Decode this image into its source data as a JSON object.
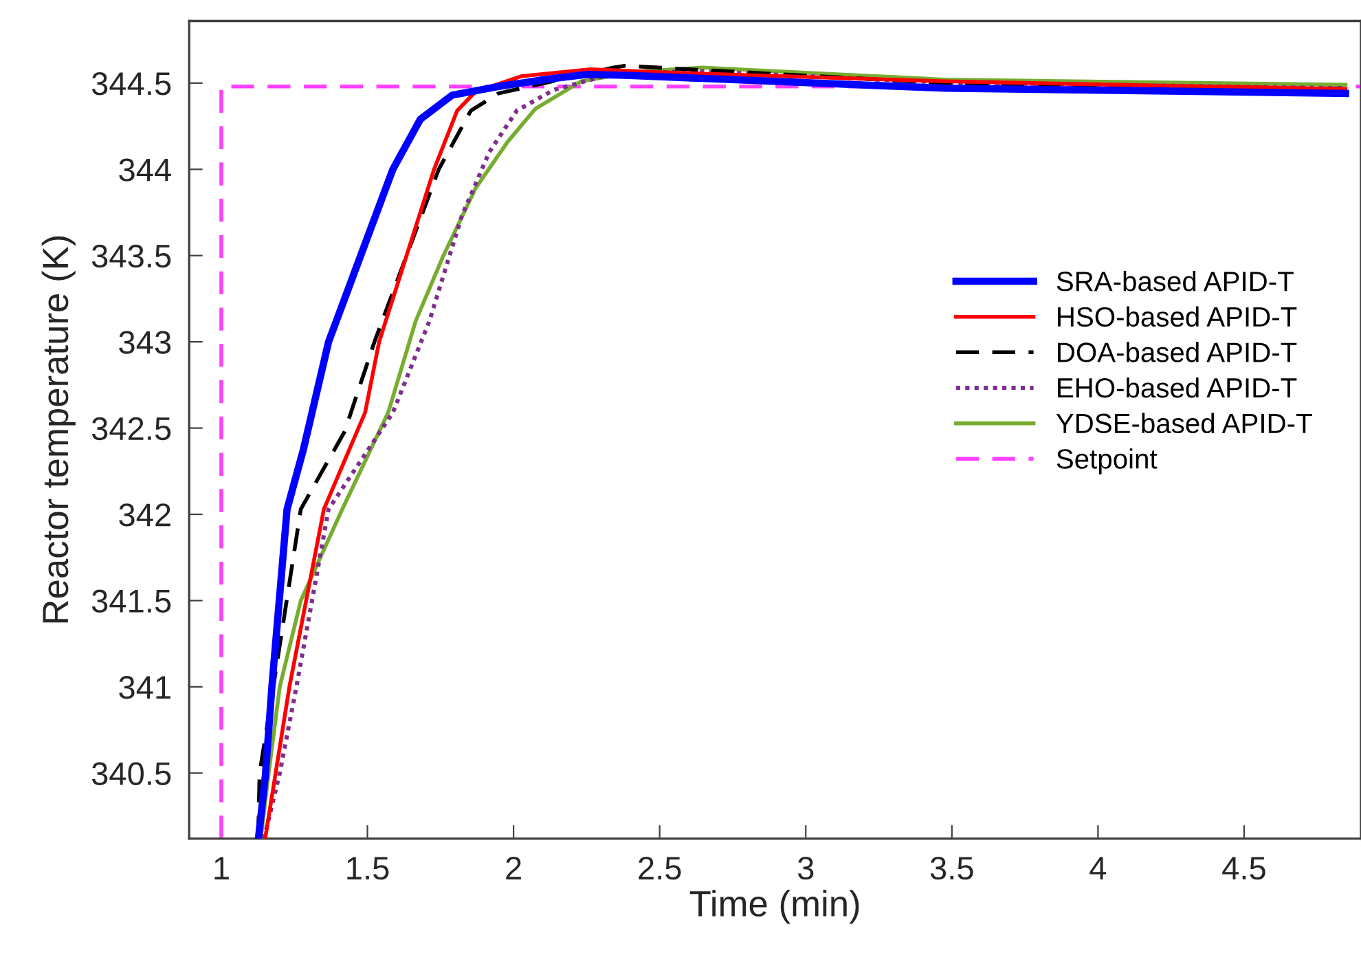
{
  "chart_data": {
    "type": "line",
    "xlabel": "Time (min)",
    "ylabel": "Reactor temperature (K)",
    "xlim": [
      0.89,
      4.9
    ],
    "ylim": [
      340.12,
      344.86
    ],
    "xticks": [
      1,
      1.5,
      2,
      2.5,
      3,
      3.5,
      4,
      4.5
    ],
    "yticks": [
      340.5,
      341,
      341.5,
      342,
      342.5,
      343,
      343.5,
      344,
      344.5
    ],
    "grid": false,
    "legend": "right",
    "marker": "none",
    "series": [
      {
        "name": "SRA-based APID-T",
        "color": "#0000ff",
        "line_style": "solid",
        "x": [
          1.127,
          1.151,
          1.173,
          1.225,
          1.28,
          1.367,
          1.477,
          1.587,
          1.681,
          1.79,
          1.948,
          2.106,
          2.25,
          2.383,
          3.475,
          4.847
        ],
        "values": [
          340.12,
          340.49,
          341.0,
          342.03,
          342.37,
          343.0,
          343.5,
          344.0,
          344.29,
          344.43,
          344.48,
          344.52,
          344.55,
          344.545,
          344.47,
          344.44
        ]
      },
      {
        "name": "HSO-based APID-T",
        "color": "#ff0000",
        "line_style": "solid",
        "x": [
          1.15,
          1.233,
          1.351,
          1.492,
          1.54,
          1.634,
          1.728,
          1.807,
          1.87,
          2.027,
          2.263,
          2.546,
          3.475,
          4.847
        ],
        "values": [
          340.12,
          341.0,
          342.03,
          342.59,
          343.0,
          343.5,
          344.0,
          344.34,
          344.45,
          344.54,
          344.58,
          344.56,
          344.51,
          344.465
        ]
      },
      {
        "name": "DOA-based APID-T",
        "color": "#000000",
        "line_style": "dashed",
        "x": [
          1.126,
          1.131,
          1.178,
          1.272,
          1.422,
          1.524,
          1.634,
          1.744,
          1.854,
          1.948,
          2.342,
          2.38,
          3.475,
          4.847
        ],
        "values": [
          340.12,
          340.5,
          341.0,
          342.03,
          342.48,
          343.0,
          343.5,
          344.0,
          344.34,
          344.44,
          344.59,
          344.6,
          344.5,
          344.465
        ]
      },
      {
        "name": "EHO-based APID-T",
        "color": "#7e2f8e",
        "line_style": "dotted",
        "x": [
          1.146,
          1.2,
          1.257,
          1.367,
          1.587,
          1.712,
          1.823,
          1.917,
          2.011,
          2.137,
          2.342,
          2.645,
          3.475,
          4.847
        ],
        "values": [
          340.12,
          340.5,
          341.0,
          342.03,
          342.59,
          343.12,
          343.73,
          344.1,
          344.34,
          344.46,
          344.556,
          344.568,
          344.503,
          344.47
        ]
      },
      {
        "name": "YDSE-based APID-T",
        "color": "#77ac30",
        "line_style": "solid",
        "x": [
          1.135,
          1.162,
          1.2,
          1.272,
          1.414,
          1.571,
          1.665,
          1.76,
          1.87,
          1.98,
          2.074,
          2.231,
          2.42,
          2.645,
          3.475,
          4.847
        ],
        "values": [
          340.12,
          340.5,
          341.0,
          341.5,
          342.03,
          342.59,
          343.12,
          343.5,
          343.89,
          344.16,
          344.35,
          344.51,
          344.566,
          344.59,
          344.52,
          344.49
        ]
      },
      {
        "name": "Setpoint",
        "color": "#ff40ff",
        "line_style": "dashed",
        "x": [
          1,
          1,
          4.9
        ],
        "values": [
          340.12,
          344.48,
          344.48
        ]
      }
    ]
  }
}
